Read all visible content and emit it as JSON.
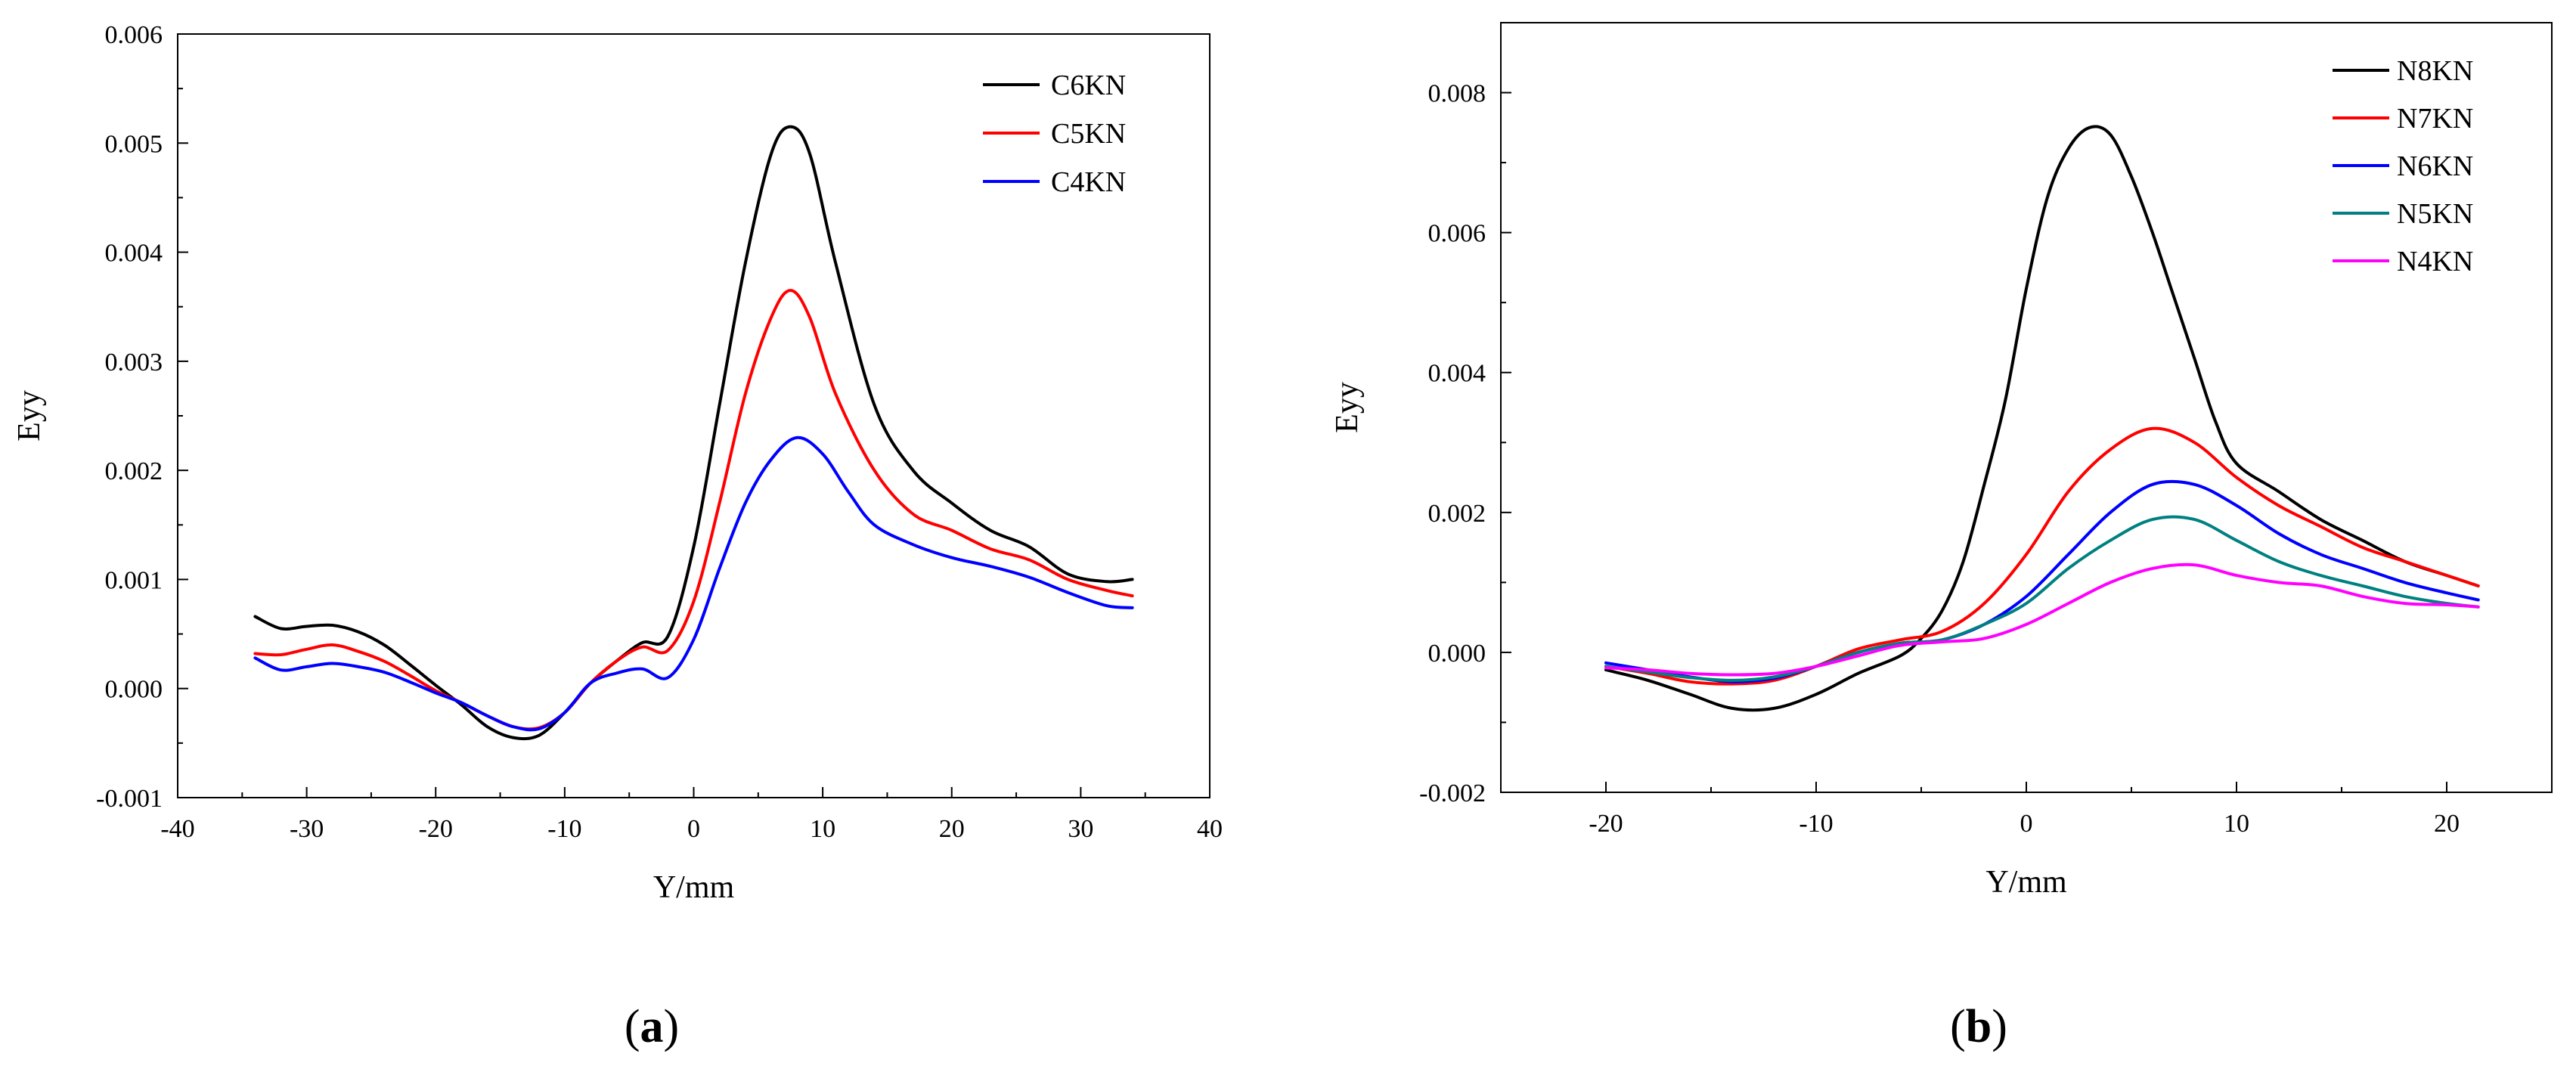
{
  "chart_data": [
    {
      "type": "line",
      "panel_label_open": "(",
      "panel_label_letter": "a",
      "panel_label_close": ")",
      "xlabel": "Y/mm",
      "ylabel": "Eyy",
      "xlim": [
        -40,
        40
      ],
      "ylim": [
        -0.001,
        0.006
      ],
      "xticks": [
        -40,
        -30,
        -20,
        -10,
        0,
        10,
        20,
        30,
        40
      ],
      "xtick_labels": [
        "-40",
        "-30",
        "-20",
        "-10",
        "0",
        "10",
        "20",
        "30",
        "40"
      ],
      "yticks": [
        -0.001,
        0,
        0.001,
        0.002,
        0.003,
        0.004,
        0.005,
        0.006
      ],
      "ytick_labels": [
        "-0.001",
        "0.000",
        "0.001",
        "0.002",
        "0.003",
        "0.004",
        "0.005",
        "0.006"
      ],
      "legend_position": "top-right",
      "series": [
        {
          "name": "C6KN",
          "color": "#000000",
          "x": [
            -34,
            -32,
            -30,
            -28,
            -26,
            -24,
            -22,
            -20,
            -18,
            -16,
            -14,
            -12,
            -10,
            -8,
            -6,
            -4,
            -2,
            0,
            2,
            4,
            6,
            7.5,
            9,
            11,
            14,
            17,
            20,
            23,
            26,
            29,
            32,
            34
          ],
          "y": [
            0.00066,
            0.00055,
            0.00057,
            0.00058,
            0.00052,
            0.0004,
            0.00022,
            3e-05,
            -0.00015,
            -0.00035,
            -0.00045,
            -0.00043,
            -0.00022,
            5e-05,
            0.00025,
            0.00042,
            0.00048,
            0.0013,
            0.0026,
            0.0039,
            0.0049,
            0.00515,
            0.0049,
            0.0039,
            0.0026,
            0.002,
            0.0017,
            0.00145,
            0.0013,
            0.00105,
            0.00098,
            0.001
          ]
        },
        {
          "name": "C5KN",
          "color": "#ff0000",
          "x": [
            -34,
            -32,
            -30,
            -28,
            -26,
            -24,
            -22,
            -20,
            -18,
            -16,
            -14,
            -12,
            -10,
            -8,
            -6,
            -4,
            -2,
            0,
            2,
            4,
            6,
            7.5,
            9,
            11,
            14,
            17,
            20,
            23,
            26,
            29,
            32,
            34
          ],
          "y": [
            0.00032,
            0.00031,
            0.00036,
            0.0004,
            0.00034,
            0.00025,
            0.00012,
            -2e-05,
            -0.00013,
            -0.00025,
            -0.00035,
            -0.00036,
            -0.00022,
            5e-05,
            0.00025,
            0.00038,
            0.00035,
            0.0008,
            0.0017,
            0.0027,
            0.0034,
            0.00365,
            0.0034,
            0.0027,
            0.002,
            0.0016,
            0.00145,
            0.00128,
            0.00118,
            0.001,
            0.0009,
            0.00085
          ]
        },
        {
          "name": "C4KN",
          "color": "#0000ff",
          "x": [
            -34,
            -32,
            -30,
            -28,
            -26,
            -24,
            -22,
            -20,
            -18,
            -16,
            -14,
            -12,
            -10,
            -8,
            -6,
            -4,
            -2,
            0,
            2,
            4,
            6,
            8,
            10,
            12,
            14,
            17,
            20,
            23,
            26,
            29,
            32,
            34
          ],
          "y": [
            0.00028,
            0.00017,
            0.0002,
            0.00023,
            0.0002,
            0.00015,
            6e-05,
            -4e-05,
            -0.00013,
            -0.00025,
            -0.00035,
            -0.00037,
            -0.00022,
            5e-05,
            0.00014,
            0.00018,
            0.0001,
            0.00045,
            0.0011,
            0.0017,
            0.0021,
            0.0023,
            0.00215,
            0.0018,
            0.0015,
            0.00132,
            0.0012,
            0.00112,
            0.00102,
            0.00088,
            0.00076,
            0.00074
          ]
        }
      ]
    },
    {
      "type": "line",
      "panel_label_open": "(",
      "panel_label_letter": "b",
      "panel_label_close": ")",
      "xlabel": "Y/mm",
      "ylabel": "Eyy",
      "xlim": [
        -25,
        25
      ],
      "ylim": [
        -0.002,
        0.009
      ],
      "xticks": [
        -20,
        -10,
        0,
        10,
        20
      ],
      "xtick_labels": [
        "-20",
        "-10",
        "0",
        "10",
        "20"
      ],
      "yticks": [
        -0.002,
        0,
        0.002,
        0.004,
        0.006,
        0.008
      ],
      "ytick_labels": [
        "-0.002",
        "0.000",
        "0.002",
        "0.004",
        "0.006",
        "0.008"
      ],
      "legend_position": "top-right",
      "series": [
        {
          "name": "N8KN",
          "color": "#000000",
          "x": [
            -20,
            -18,
            -16,
            -14,
            -12,
            -10,
            -8,
            -6,
            -5,
            -4,
            -3,
            -2,
            -1,
            0,
            1,
            2,
            3,
            4,
            5,
            6,
            7,
            8,
            9,
            10,
            12,
            14,
            16,
            18,
            20,
            21.5
          ],
          "y": [
            -0.00025,
            -0.0004,
            -0.0006,
            -0.0008,
            -0.0008,
            -0.0006,
            -0.0003,
            -5e-05,
            0.0002,
            0.0006,
            0.0013,
            0.0024,
            0.0036,
            0.0052,
            0.0065,
            0.0072,
            0.0075,
            0.0074,
            0.0068,
            0.006,
            0.0051,
            0.0042,
            0.0033,
            0.0027,
            0.0023,
            0.0019,
            0.0016,
            0.0013,
            0.0011,
            0.00095
          ]
        },
        {
          "name": "N7KN",
          "color": "#ff0000",
          "x": [
            -20,
            -18,
            -16,
            -14,
            -12,
            -10,
            -8,
            -6,
            -4,
            -2,
            0,
            2,
            4,
            6,
            8,
            10,
            12,
            14,
            16,
            18,
            20,
            21.5
          ],
          "y": [
            -0.0002,
            -0.0003,
            -0.00042,
            -0.00045,
            -0.0004,
            -0.0002,
            5e-05,
            0.00018,
            0.0003,
            0.0007,
            0.0014,
            0.0023,
            0.0029,
            0.0032,
            0.003,
            0.0025,
            0.0021,
            0.0018,
            0.0015,
            0.0013,
            0.0011,
            0.00095
          ]
        },
        {
          "name": "N6KN",
          "color": "#0000ff",
          "x": [
            -20,
            -18,
            -16,
            -14,
            -12,
            -10,
            -8,
            -6,
            -4,
            -2,
            0,
            2,
            4,
            6,
            8,
            10,
            12,
            14,
            16,
            18,
            20,
            21.5
          ],
          "y": [
            -0.00015,
            -0.00025,
            -0.00035,
            -0.00042,
            -0.00037,
            -0.0002,
            0.0,
            0.00013,
            0.00018,
            0.0004,
            0.0008,
            0.0014,
            0.002,
            0.0024,
            0.0024,
            0.0021,
            0.0017,
            0.0014,
            0.0012,
            0.001,
            0.00085,
            0.00075
          ]
        },
        {
          "name": "N5KN",
          "color": "#008080",
          "x": [
            -20,
            -18,
            -16,
            -14,
            -12,
            -10,
            -8,
            -6,
            -4,
            -2,
            0,
            2,
            4,
            6,
            8,
            10,
            12,
            14,
            16,
            18,
            20,
            21.5
          ],
          "y": [
            -0.0002,
            -0.00028,
            -0.00036,
            -0.0004,
            -0.00035,
            -0.0002,
            0.0,
            0.00013,
            0.00018,
            0.0004,
            0.0007,
            0.0012,
            0.0016,
            0.0019,
            0.0019,
            0.0016,
            0.0013,
            0.0011,
            0.00095,
            0.0008,
            0.0007,
            0.00065
          ]
        },
        {
          "name": "N4KN",
          "color": "#ff00ff",
          "x": [
            -20,
            -18,
            -16,
            -14,
            -12,
            -10,
            -8,
            -6,
            -4,
            -2,
            0,
            2,
            4,
            6,
            8,
            10,
            12,
            14,
            16,
            18,
            20,
            21.5
          ],
          "y": [
            -0.00022,
            -0.00025,
            -0.0003,
            -0.00032,
            -0.0003,
            -0.0002,
            -5e-05,
            0.0001,
            0.00015,
            0.0002,
            0.0004,
            0.0007,
            0.001,
            0.0012,
            0.00125,
            0.0011,
            0.001,
            0.00095,
            0.0008,
            0.0007,
            0.00068,
            0.00065
          ]
        }
      ]
    }
  ]
}
